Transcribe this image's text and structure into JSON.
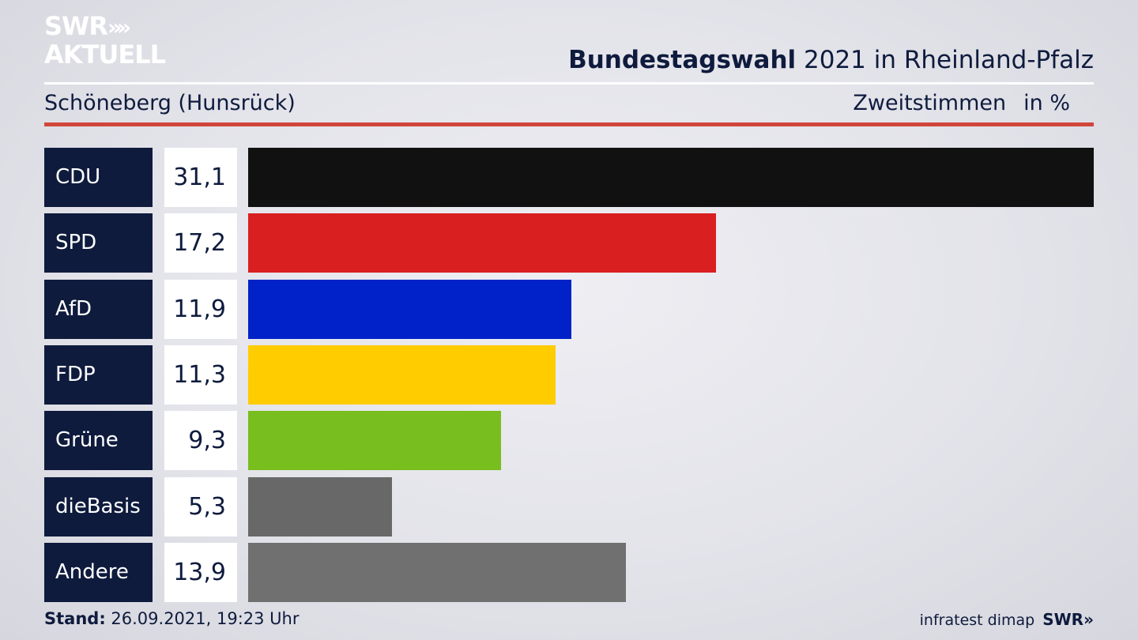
{
  "brand": {
    "line1": "SWR",
    "line2": "AKTUELL",
    "chevrons": "»"
  },
  "header": {
    "title_bold": "Bundestagswahl",
    "title_rest": " 2021 in Rheinland-Pfalz",
    "subtitle": "Schöneberg (Hunsrück)",
    "measure": "Zweitstimmen",
    "unit": "in %"
  },
  "chart_data": {
    "type": "bar",
    "orientation": "horizontal",
    "categories": [
      "CDU",
      "SPD",
      "AfD",
      "FDP",
      "Grüne",
      "dieBasis",
      "Andere"
    ],
    "value_labels": [
      "31,1",
      "17,2",
      "11,9",
      "11,3",
      "9,3",
      "5,3",
      "13,9"
    ],
    "values": [
      31.1,
      17.2,
      11.9,
      11.3,
      9.3,
      5.3,
      13.9
    ],
    "colors": [
      "#111111",
      "#d91f1f",
      "#0022c8",
      "#ffcc00",
      "#78be1e",
      "#686868",
      "#707070"
    ],
    "unit": "in %",
    "grid": false
  },
  "footer": {
    "stand_label": "Stand:",
    "stand_value": " 26.09.2021, 19:23 Uhr",
    "source": "infratest dimap",
    "logo": "SWR»"
  }
}
